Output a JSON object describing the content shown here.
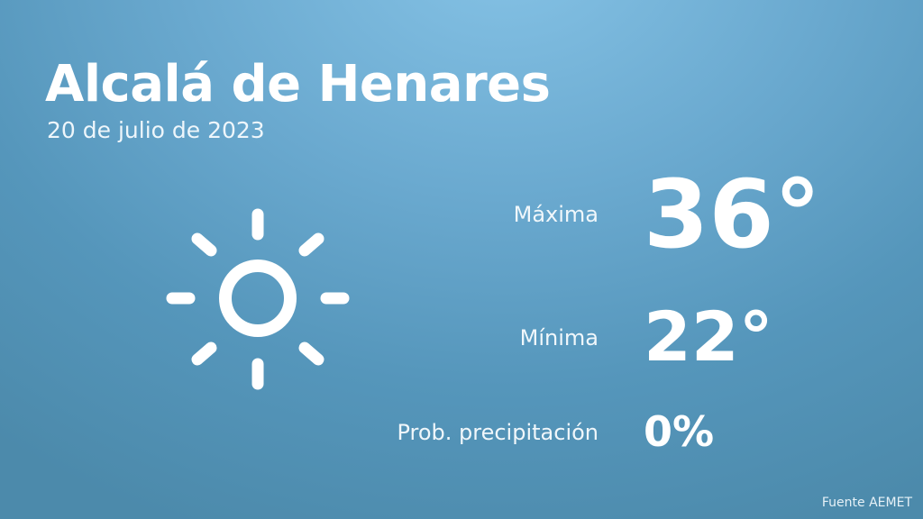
{
  "city": "Alcalá de Henares",
  "date": "20 de julio de 2023",
  "weather_icon": "sun-icon",
  "max_label": "Máxima",
  "max_value": "36°",
  "min_label": "Mínima",
  "min_value": "22°",
  "precip_label": "Prob. precipitación",
  "precip_value": "0%",
  "source": "Fuente AEMET",
  "colors": {
    "background_top": "#86c3e6",
    "background_bottom": "#4c8aab",
    "text": "#ffffff"
  }
}
